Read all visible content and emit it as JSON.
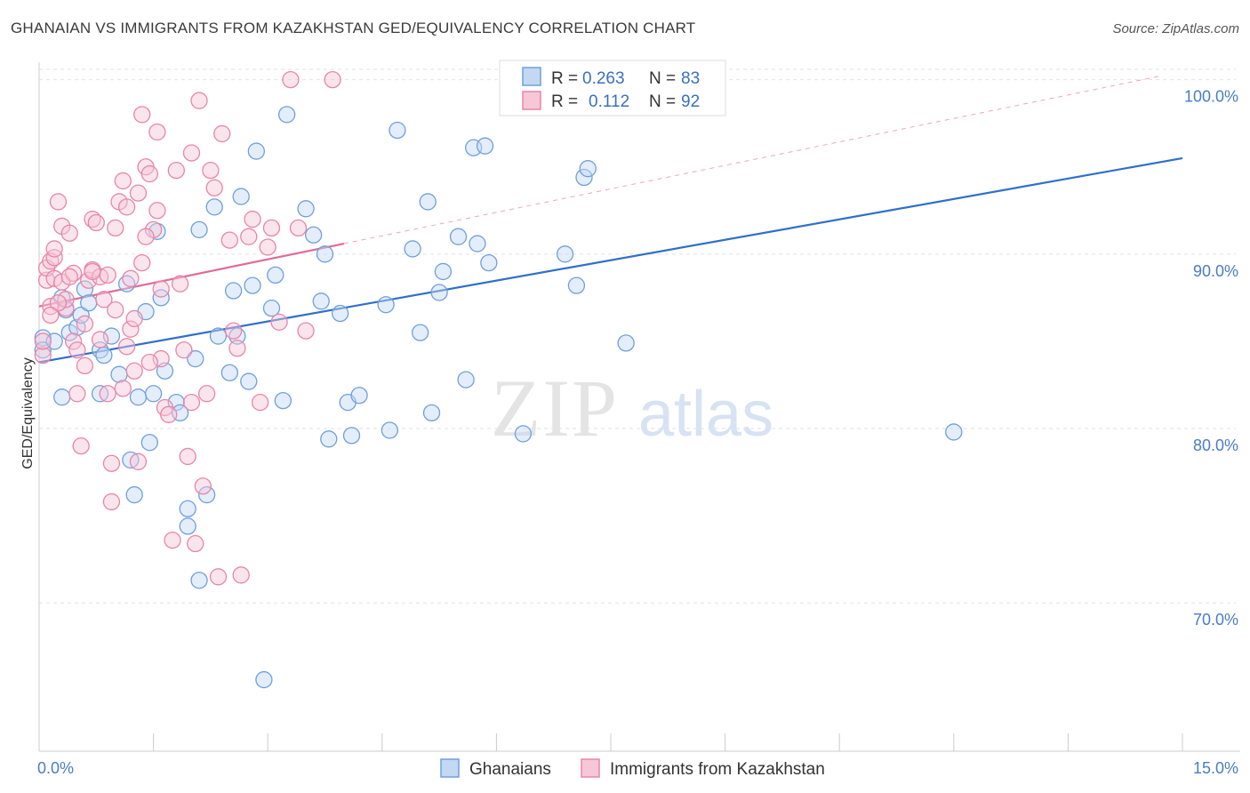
{
  "title": "GHANAIAN VS IMMIGRANTS FROM KAZAKHSTAN GED/EQUIVALENCY CORRELATION CHART",
  "source": "Source: ZipAtlas.com",
  "watermark": {
    "zip": "ZIP",
    "atlas": "atlas"
  },
  "colors": {
    "blue": "#6fa0dc",
    "blue_fill": "#c3d8f3",
    "blue_line": "#2f6fcc",
    "pink": "#e886a8",
    "pink_fill": "#f7c6d7",
    "pink_line": "#e06c96",
    "grid": "#e2e2e2",
    "axis_text": "#4a7cc6"
  },
  "legend_top": {
    "rows": [
      {
        "r_label": "R =",
        "r_value": "0.263",
        "n_label": "N =",
        "n_value": "83"
      },
      {
        "r_label": "R =",
        "r_value": "0.112",
        "n_label": "N =",
        "n_value": "92"
      }
    ]
  },
  "legend_bottom": {
    "items": [
      "Ghanaians",
      "Immigrants from Kazakhstan"
    ]
  },
  "chart_data": {
    "type": "scatter",
    "xlabel": "",
    "ylabel": "GED/Equivalency",
    "xlim": [
      0,
      15
    ],
    "ylim": [
      61.5,
      101.0
    ],
    "x_tick_labels": [
      {
        "value": 0,
        "label": "0.0%"
      },
      {
        "value": 15,
        "label": "15.0%"
      }
    ],
    "y_ticks": [
      {
        "value": 70,
        "label": "70.0%"
      },
      {
        "value": 80,
        "label": "80.0%"
      },
      {
        "value": 90,
        "label": "90.0%"
      },
      {
        "value": 100,
        "label": "100.0%"
      }
    ],
    "grid": true,
    "legend_placement": "top-center",
    "series": [
      {
        "name": "Ghanaians",
        "color": "#6fa0dc",
        "trend": {
          "x0": 0,
          "y0": 83.8,
          "x1": 15,
          "y1": 95.5,
          "dashed_to": null
        },
        "points": [
          [
            0.05,
            85.2
          ],
          [
            0.05,
            84.5
          ],
          [
            0.2,
            85.0
          ],
          [
            0.3,
            81.8
          ],
          [
            0.3,
            87.5
          ],
          [
            0.35,
            86.8
          ],
          [
            0.4,
            85.5
          ],
          [
            0.5,
            85.8
          ],
          [
            0.55,
            86.5
          ],
          [
            0.6,
            88.0
          ],
          [
            0.65,
            87.2
          ],
          [
            0.8,
            84.5
          ],
          [
            0.8,
            82.0
          ],
          [
            0.85,
            84.2
          ],
          [
            0.95,
            85.3
          ],
          [
            1.05,
            83.1
          ],
          [
            1.15,
            88.3
          ],
          [
            1.2,
            78.2
          ],
          [
            1.25,
            76.2
          ],
          [
            1.3,
            81.8
          ],
          [
            1.4,
            86.7
          ],
          [
            1.45,
            79.2
          ],
          [
            1.5,
            82.0
          ],
          [
            1.55,
            91.3
          ],
          [
            1.6,
            87.5
          ],
          [
            1.65,
            83.3
          ],
          [
            1.8,
            81.5
          ],
          [
            1.85,
            80.9
          ],
          [
            1.95,
            74.4
          ],
          [
            1.95,
            75.4
          ],
          [
            2.05,
            84.0
          ],
          [
            2.1,
            71.3
          ],
          [
            2.1,
            91.4
          ],
          [
            2.2,
            76.2
          ],
          [
            2.3,
            92.7
          ],
          [
            2.35,
            85.3
          ],
          [
            2.5,
            83.2
          ],
          [
            2.55,
            87.9
          ],
          [
            2.6,
            85.3
          ],
          [
            2.65,
            93.3
          ],
          [
            2.75,
            82.7
          ],
          [
            2.8,
            88.2
          ],
          [
            2.85,
            95.9
          ],
          [
            2.95,
            65.6
          ],
          [
            3.05,
            86.9
          ],
          [
            3.1,
            88.8
          ],
          [
            3.2,
            81.6
          ],
          [
            3.25,
            98.0
          ],
          [
            3.5,
            92.6
          ],
          [
            3.6,
            91.1
          ],
          [
            3.7,
            87.3
          ],
          [
            3.75,
            90.0
          ],
          [
            3.8,
            79.4
          ],
          [
            3.95,
            86.6
          ],
          [
            4.05,
            81.5
          ],
          [
            4.1,
            79.6
          ],
          [
            4.2,
            81.9
          ],
          [
            4.55,
            87.1
          ],
          [
            4.6,
            79.9
          ],
          [
            4.7,
            97.1
          ],
          [
            4.9,
            90.3
          ],
          [
            5.0,
            85.5
          ],
          [
            5.1,
            93.0
          ],
          [
            5.15,
            80.9
          ],
          [
            5.25,
            87.8
          ],
          [
            5.3,
            89.0
          ],
          [
            5.5,
            91.0
          ],
          [
            5.6,
            82.8
          ],
          [
            5.7,
            96.1
          ],
          [
            5.75,
            90.6
          ],
          [
            5.85,
            96.2
          ],
          [
            5.9,
            89.5
          ],
          [
            6.35,
            79.7
          ],
          [
            6.45,
            99.2
          ],
          [
            6.9,
            90.0
          ],
          [
            7.05,
            88.2
          ],
          [
            7.15,
            94.4
          ],
          [
            7.2,
            94.9
          ],
          [
            7.25,
            100.5
          ],
          [
            7.5,
            100.3
          ],
          [
            7.65,
            100.2
          ],
          [
            7.7,
            84.9
          ],
          [
            12.0,
            79.8
          ]
        ]
      },
      {
        "name": "Immigrants from Kazakhstan",
        "color": "#e886a8",
        "trend": {
          "x0": 0,
          "y0": 87.0,
          "x1": 4.0,
          "y1": 90.6,
          "dashed_to": {
            "x": 14.7,
            "y": 100.2
          }
        },
        "points": [
          [
            0.05,
            84.2
          ],
          [
            0.05,
            85.0
          ],
          [
            0.1,
            88.5
          ],
          [
            0.1,
            89.2
          ],
          [
            0.15,
            89.6
          ],
          [
            0.15,
            87.0
          ],
          [
            0.2,
            89.8
          ],
          [
            0.2,
            88.6
          ],
          [
            0.25,
            93.0
          ],
          [
            0.3,
            91.6
          ],
          [
            0.3,
            88.4
          ],
          [
            0.35,
            86.9
          ],
          [
            0.35,
            87.4
          ],
          [
            0.4,
            91.2
          ],
          [
            0.45,
            88.9
          ],
          [
            0.45,
            85.0
          ],
          [
            0.5,
            84.5
          ],
          [
            0.5,
            82.0
          ],
          [
            0.55,
            79.0
          ],
          [
            0.6,
            86.0
          ],
          [
            0.65,
            88.5
          ],
          [
            0.7,
            89.1
          ],
          [
            0.7,
            92.0
          ],
          [
            0.75,
            91.8
          ],
          [
            0.8,
            88.7
          ],
          [
            0.8,
            85.1
          ],
          [
            0.85,
            87.4
          ],
          [
            0.9,
            82.0
          ],
          [
            0.95,
            78.0
          ],
          [
            0.95,
            75.8
          ],
          [
            1.0,
            91.5
          ],
          [
            1.05,
            93.0
          ],
          [
            1.1,
            94.2
          ],
          [
            1.15,
            92.7
          ],
          [
            1.2,
            88.6
          ],
          [
            1.2,
            85.7
          ],
          [
            1.25,
            83.3
          ],
          [
            1.3,
            78.1
          ],
          [
            1.3,
            93.5
          ],
          [
            1.35,
            98.0
          ],
          [
            1.4,
            95.0
          ],
          [
            1.45,
            94.6
          ],
          [
            1.5,
            91.4
          ],
          [
            1.55,
            92.5
          ],
          [
            1.55,
            97.0
          ],
          [
            1.6,
            84.0
          ],
          [
            1.65,
            81.2
          ],
          [
            1.7,
            80.8
          ],
          [
            1.75,
            73.6
          ],
          [
            1.8,
            94.8
          ],
          [
            1.85,
            88.3
          ],
          [
            1.9,
            84.5
          ],
          [
            1.95,
            78.4
          ],
          [
            2.0,
            95.8
          ],
          [
            2.0,
            81.5
          ],
          [
            2.05,
            73.4
          ],
          [
            2.1,
            98.8
          ],
          [
            2.15,
            76.7
          ],
          [
            2.2,
            82.0
          ],
          [
            2.25,
            94.8
          ],
          [
            2.3,
            93.8
          ],
          [
            2.35,
            71.5
          ],
          [
            2.4,
            96.9
          ],
          [
            2.5,
            90.8
          ],
          [
            2.55,
            85.6
          ],
          [
            2.6,
            84.6
          ],
          [
            2.65,
            71.6
          ],
          [
            2.75,
            91.0
          ],
          [
            2.8,
            92.0
          ],
          [
            2.9,
            81.5
          ],
          [
            3.0,
            90.4
          ],
          [
            3.05,
            91.5
          ],
          [
            3.15,
            86.1
          ],
          [
            3.3,
            100.0
          ],
          [
            3.4,
            91.5
          ],
          [
            3.5,
            85.6
          ],
          [
            3.85,
            100.0
          ],
          [
            0.25,
            87.2
          ],
          [
            0.6,
            83.6
          ],
          [
            0.9,
            88.8
          ],
          [
            1.0,
            86.8
          ],
          [
            1.1,
            82.3
          ],
          [
            1.15,
            84.7
          ],
          [
            1.25,
            86.3
          ],
          [
            1.35,
            89.5
          ],
          [
            0.4,
            88.7
          ],
          [
            1.4,
            91.0
          ],
          [
            1.45,
            83.8
          ],
          [
            0.15,
            86.5
          ],
          [
            0.2,
            90.3
          ],
          [
            0.7,
            89.0
          ],
          [
            1.6,
            88.0
          ]
        ]
      }
    ]
  }
}
